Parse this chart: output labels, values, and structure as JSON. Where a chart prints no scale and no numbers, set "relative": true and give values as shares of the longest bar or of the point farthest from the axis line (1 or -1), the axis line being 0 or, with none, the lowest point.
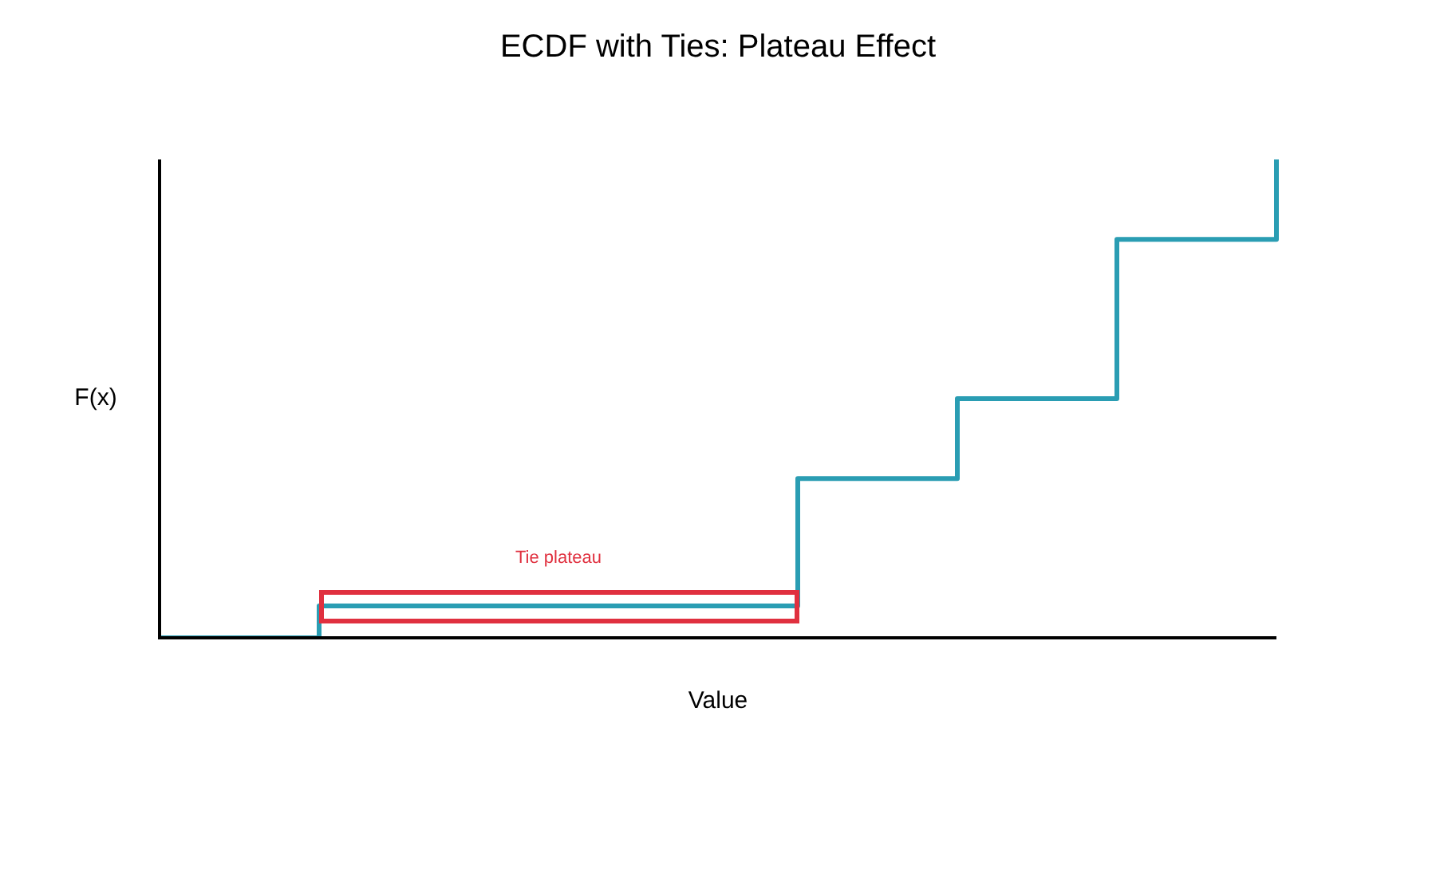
{
  "chart_data": {
    "type": "step",
    "title": "ECDF with Ties: Plateau Effect",
    "xlabel": "Value",
    "ylabel": "F(x)",
    "relative": true,
    "categories": [
      null,
      null,
      null,
      null,
      null,
      null,
      null,
      null
    ],
    "series": [
      {
        "color": "#2a9db3",
        "values": [
          0,
          0.0667,
          0.0667,
          0.0667,
          0.333,
          0.5,
          0.833,
          1
        ]
      }
    ],
    "annotations": [
      "Tie plateau"
    ],
    "legend": false,
    "marker": "none",
    "line_style": "solid"
  }
}
